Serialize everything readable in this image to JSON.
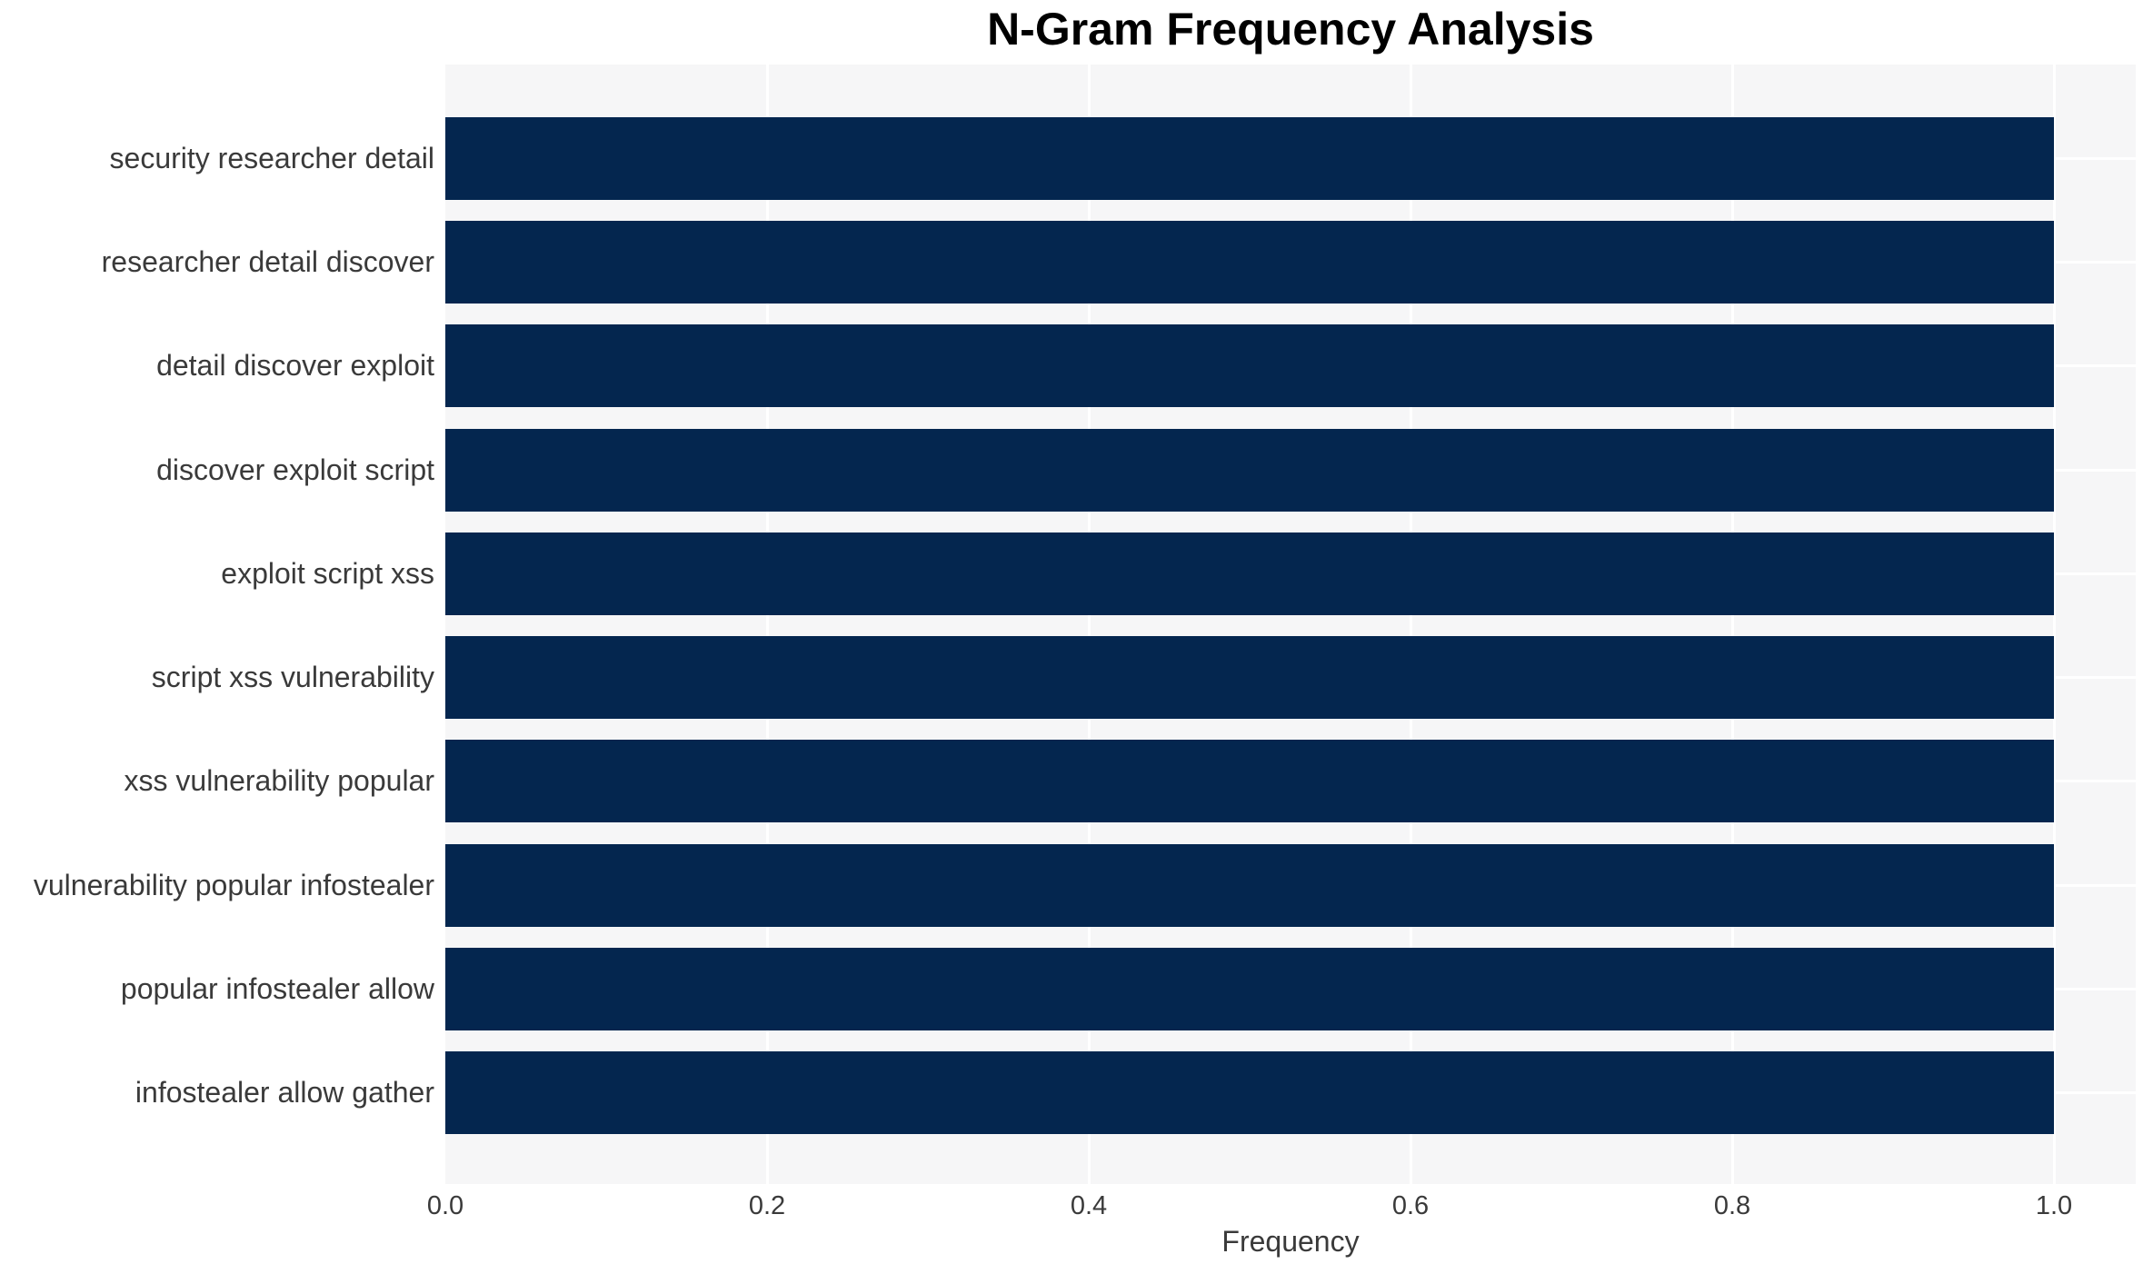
{
  "chart_data": {
    "type": "bar",
    "orientation": "horizontal",
    "title": "N-Gram Frequency Analysis",
    "xlabel": "Frequency",
    "ylabel": "",
    "categories": [
      "security researcher detail",
      "researcher detail discover",
      "detail discover exploit",
      "discover exploit script",
      "exploit script xss",
      "script xss vulnerability",
      "xss vulnerability popular",
      "vulnerability popular infostealer",
      "popular infostealer allow",
      "infostealer allow gather"
    ],
    "values": [
      1.0,
      1.0,
      1.0,
      1.0,
      1.0,
      1.0,
      1.0,
      1.0,
      1.0,
      1.0
    ],
    "xticks": [
      0.0,
      0.2,
      0.4,
      0.6,
      0.8,
      1.0
    ],
    "xtick_labels": [
      "0.0",
      "0.2",
      "0.4",
      "0.6",
      "0.8",
      "1.0"
    ],
    "xlim": [
      0.0,
      1.05
    ],
    "grid": true,
    "legend_visible": false,
    "colors": {
      "bar": "#04264f",
      "plot_background": "#f6f6f7",
      "gridline": "#ffffff",
      "title_text": "#000000",
      "axis_text": "#3a3a3a"
    }
  }
}
